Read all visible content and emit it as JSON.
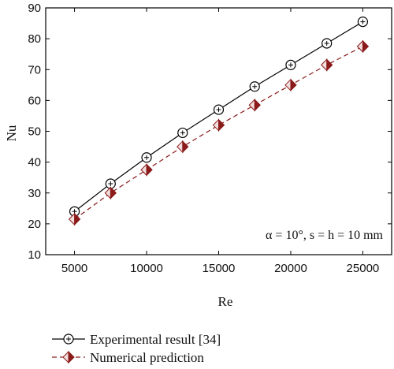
{
  "chart_data": {
    "type": "line",
    "title": "",
    "xlabel": "Re",
    "ylabel": "Nu",
    "xlim": [
      3000,
      27000
    ],
    "ylim": [
      10,
      90
    ],
    "xticks": [
      5000,
      10000,
      15000,
      20000,
      25000
    ],
    "yticks": [
      10,
      20,
      30,
      40,
      50,
      60,
      70,
      80,
      90
    ],
    "grid": false,
    "legend_position": "bottom",
    "annotation": "α = 10°, s = h = 10 mm",
    "x": [
      5000,
      7500,
      10000,
      12500,
      15000,
      17500,
      20000,
      22500,
      25000
    ],
    "series": [
      {
        "name": "Experimental result [34]",
        "values": [
          24.0,
          33.0,
          41.5,
          49.5,
          57.0,
          64.5,
          71.5,
          78.5,
          85.5
        ],
        "color": "#000000",
        "marker": "circle-plus",
        "line_style": "solid"
      },
      {
        "name": "Numerical prediction",
        "values": [
          21.5,
          30.0,
          37.5,
          45.0,
          52.0,
          58.5,
          65.0,
          71.5,
          77.5
        ],
        "color": "#8b1a1a",
        "marker": "diamond",
        "line_style": "dashed"
      }
    ]
  }
}
